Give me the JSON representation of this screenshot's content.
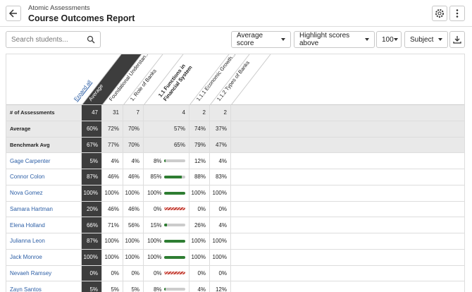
{
  "header": {
    "subtitle": "Atomic Assessments",
    "title": "Course Outcomes Report"
  },
  "toolbar": {
    "search_placeholder": "Search students...",
    "score_type": "Average score",
    "highlight": "Highlight scores above",
    "threshold": "100",
    "group_by": "Subject"
  },
  "table": {
    "expand_all": "Expand all",
    "columns": [
      "Average",
      "Foundational Understan...",
      "1. Role of Banks",
      "1.1 Functions in Financial System",
      "1.1.1 Economic Growth...",
      "1.1.2 Types of Banks"
    ],
    "summary_rows": [
      {
        "label": "# of Assessments",
        "cells": [
          47,
          31,
          7,
          4,
          2,
          2
        ]
      },
      {
        "label": "Average",
        "cells": [
          "60%",
          "72%",
          "70%",
          "57%",
          "74%",
          "37%"
        ]
      },
      {
        "label": "Benchmark Avg",
        "cells": [
          "67%",
          "77%",
          "70%",
          "65%",
          "79%",
          "47%"
        ]
      }
    ],
    "students": [
      {
        "name": "Gage Carpenter",
        "cells": [
          "5%",
          "4%",
          "4%",
          "8%",
          "12%",
          "4%"
        ]
      },
      {
        "name": "Connor Colon",
        "cells": [
          "87%",
          "46%",
          "46%",
          "85%",
          "88%",
          "83%"
        ]
      },
      {
        "name": "Nova Gomez",
        "cells": [
          "100%",
          "100%",
          "100%",
          "100%",
          "100%",
          "100%"
        ]
      },
      {
        "name": "Samara Hartman",
        "cells": [
          "20%",
          "46%",
          "46%",
          "0%",
          "0%",
          "0%"
        ]
      },
      {
        "name": "Elena Holland",
        "cells": [
          "66%",
          "71%",
          "56%",
          "15%",
          "26%",
          "4%"
        ]
      },
      {
        "name": "Julianna Leon",
        "cells": [
          "87%",
          "100%",
          "100%",
          "100%",
          "100%",
          "100%"
        ]
      },
      {
        "name": "Jack Monroe",
        "cells": [
          "100%",
          "100%",
          "100%",
          "100%",
          "100%",
          "100%"
        ]
      },
      {
        "name": "Nevaeh Ramsey",
        "cells": [
          "0%",
          "0%",
          "0%",
          "0%",
          "0%",
          "0%"
        ]
      },
      {
        "name": "Zayn Santos",
        "cells": [
          "5%",
          "5%",
          "5%",
          "8%",
          "4%",
          "12%"
        ]
      }
    ]
  }
}
